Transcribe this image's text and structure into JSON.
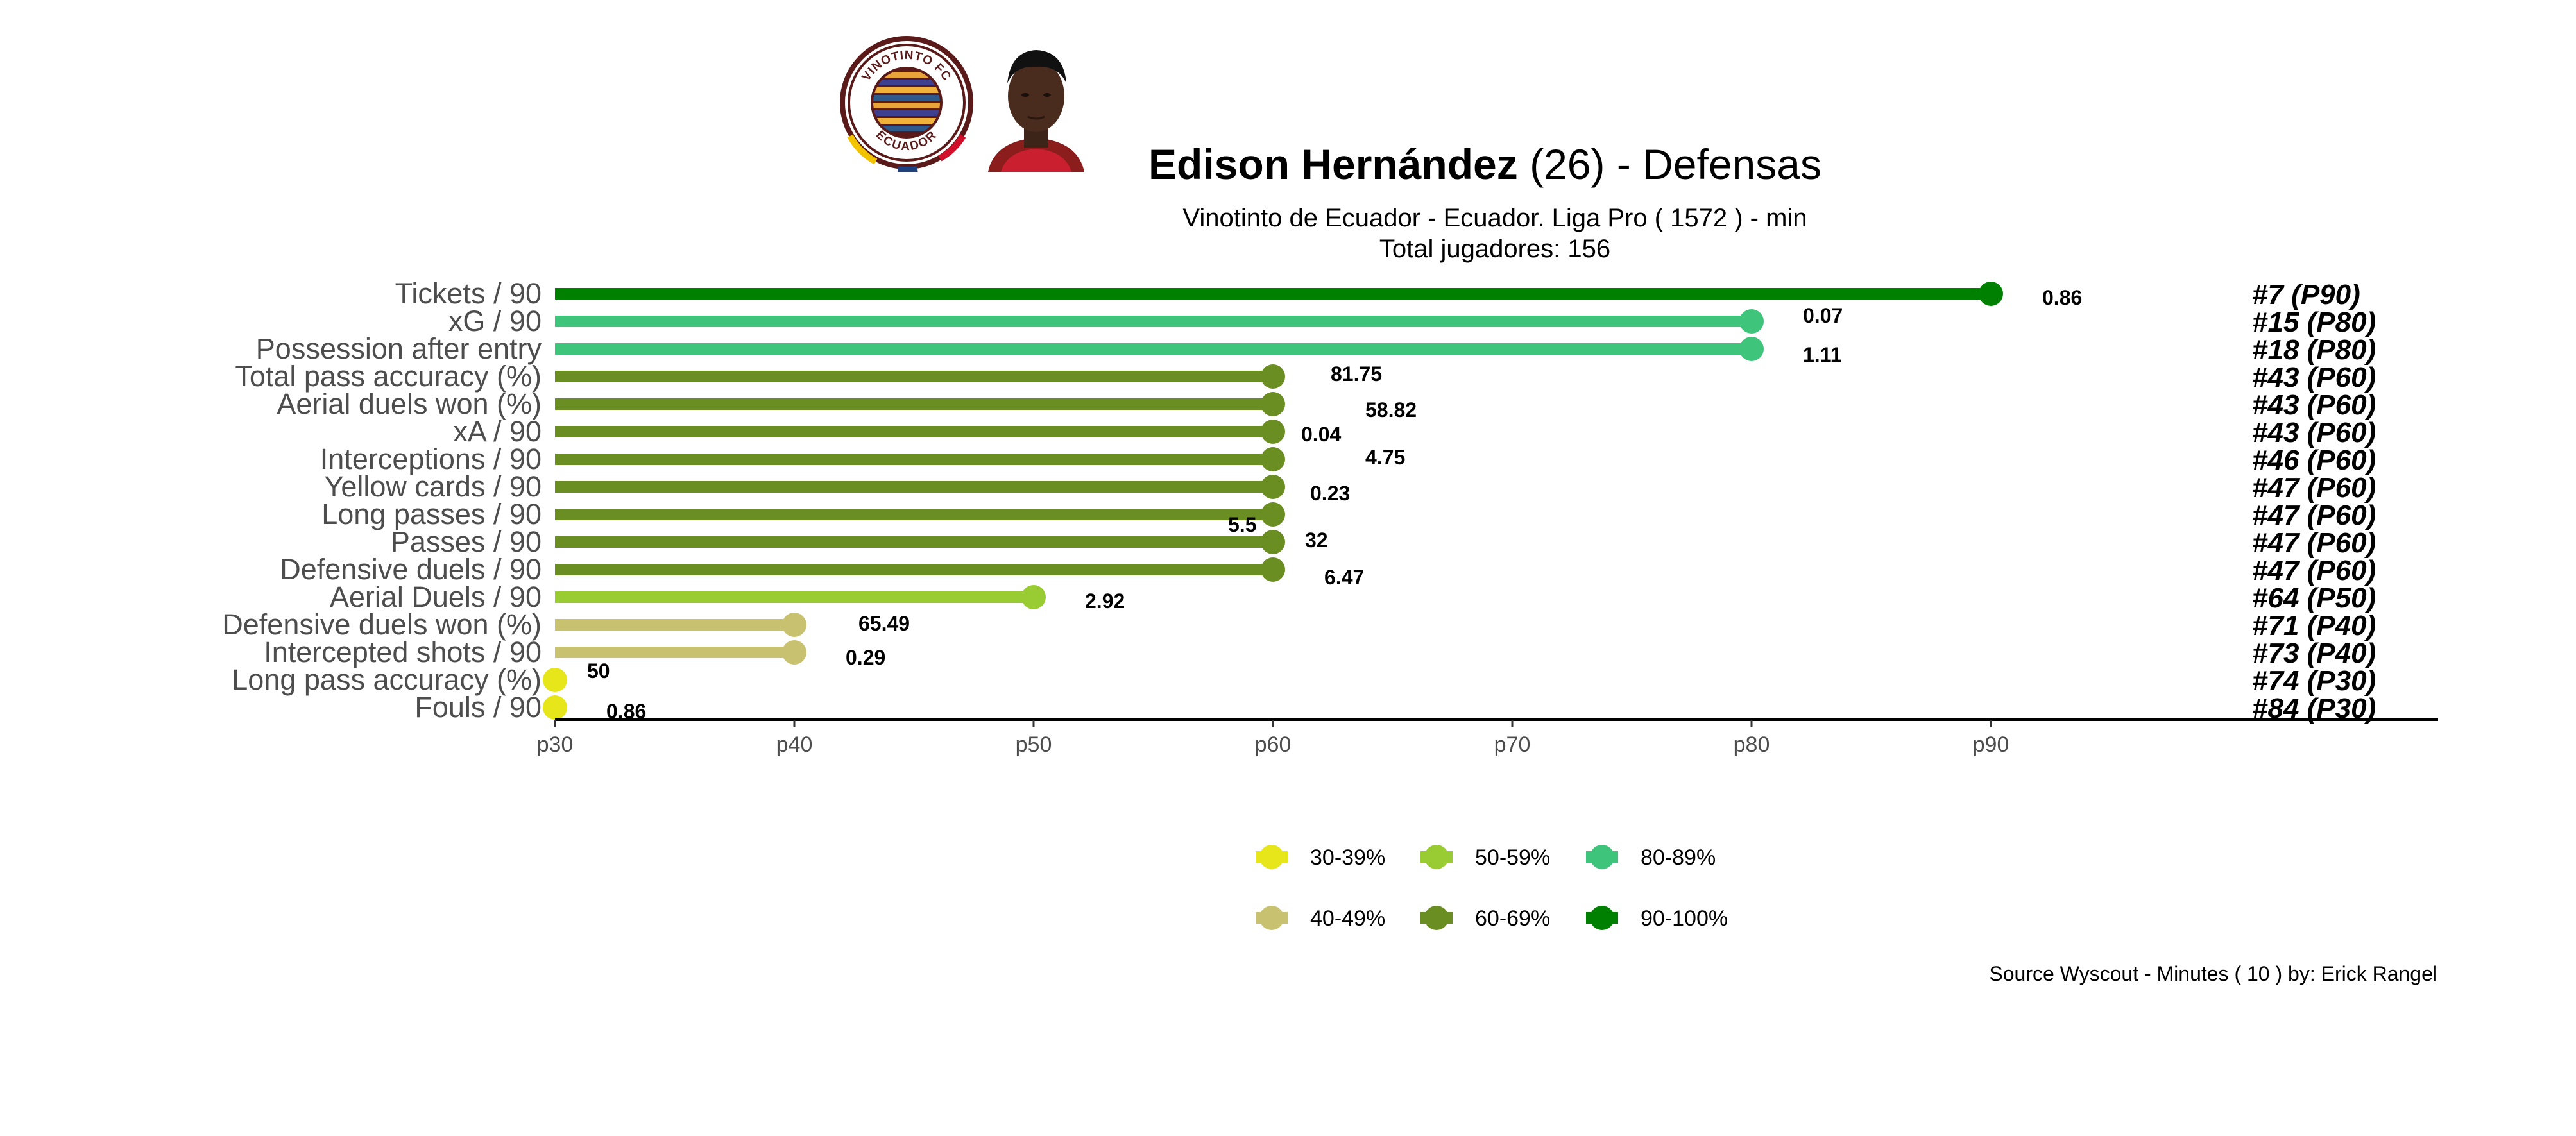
{
  "header": {
    "player_name": "Edison Hernández",
    "age_text": "(26) -",
    "position": "Defensas",
    "team_line": "Vinotinto de Ecuador  -  Ecuador. Liga Pro  ( 1572 ) - min",
    "total_line": "Total jugadores:  156",
    "logo_top_text": "VINOTINTO FC",
    "logo_bottom_text": "ECUADOR"
  },
  "footer": {
    "source": "Source Wyscout - Minutes ( 10 ) by: Erick Rangel"
  },
  "colors": {
    "band_30_39": "#e6e61a",
    "band_40_49": "#c8c270",
    "band_50_59": "#99cc33",
    "band_60_69": "#6b8e23",
    "band_80_89": "#3ec47b",
    "band_90_100": "#008000",
    "text_muted": "#555555"
  },
  "chart_data": {
    "type": "lollipop",
    "x_ticks": [
      "p30",
      "p40",
      "p50",
      "p60",
      "p70",
      "p80",
      "p90"
    ],
    "xlim": [
      30,
      100
    ],
    "categories": [
      "Tickets / 90",
      "xG / 90",
      "Possession after entry",
      "Total pass accuracy (%)",
      "Aerial duels won (%)",
      "xA / 90",
      "Interceptions / 90",
      "Yellow cards / 90",
      "Long passes / 90",
      "Passes / 90",
      "Defensive duels / 90",
      "Aerial Duels / 90",
      "Defensive duels won (%)",
      "Intercepted shots / 90",
      "Long pass accuracy (%)",
      "Fouls / 90"
    ],
    "percentiles": [
      90,
      80,
      80,
      60,
      60,
      60,
      60,
      60,
      60,
      60,
      60,
      50,
      40,
      40,
      30,
      30
    ],
    "values": [
      "0.86",
      "0.07",
      "1.11",
      "81.75",
      "58.82",
      "0.04",
      "4.75",
      "0.23",
      "5.5",
      "32",
      "6.47",
      "2.92",
      "65.49",
      "0.29",
      "50",
      "0.86"
    ],
    "ranks": [
      "#7 (P90)",
      "#15 (P80)",
      "#18 (P80)",
      "#43 (P60)",
      "#43 (P60)",
      "#43 (P60)",
      "#46 (P60)",
      "#47 (P60)",
      "#47 (P60)",
      "#47 (P60)",
      "#47 (P60)",
      "#64 (P50)",
      "#71 (P40)",
      "#73 (P40)",
      "#74 (P30)",
      "#84 (P30)"
    ],
    "bands": [
      "90-100%",
      "80-89%",
      "80-89%",
      "60-69%",
      "60-69%",
      "60-69%",
      "60-69%",
      "60-69%",
      "60-69%",
      "60-69%",
      "60-69%",
      "50-59%",
      "40-49%",
      "40-49%",
      "30-39%",
      "30-39%"
    ],
    "legend": [
      {
        "label": "30-39%",
        "color": "#e6e61a"
      },
      {
        "label": "50-59%",
        "color": "#99cc33"
      },
      {
        "label": "80-89%",
        "color": "#3ec47b"
      },
      {
        "label": "40-49%",
        "color": "#c8c270"
      },
      {
        "label": "60-69%",
        "color": "#6b8e23"
      },
      {
        "label": "90-100%",
        "color": "#008000"
      }
    ],
    "legend_position": "bottom",
    "grid": false
  }
}
